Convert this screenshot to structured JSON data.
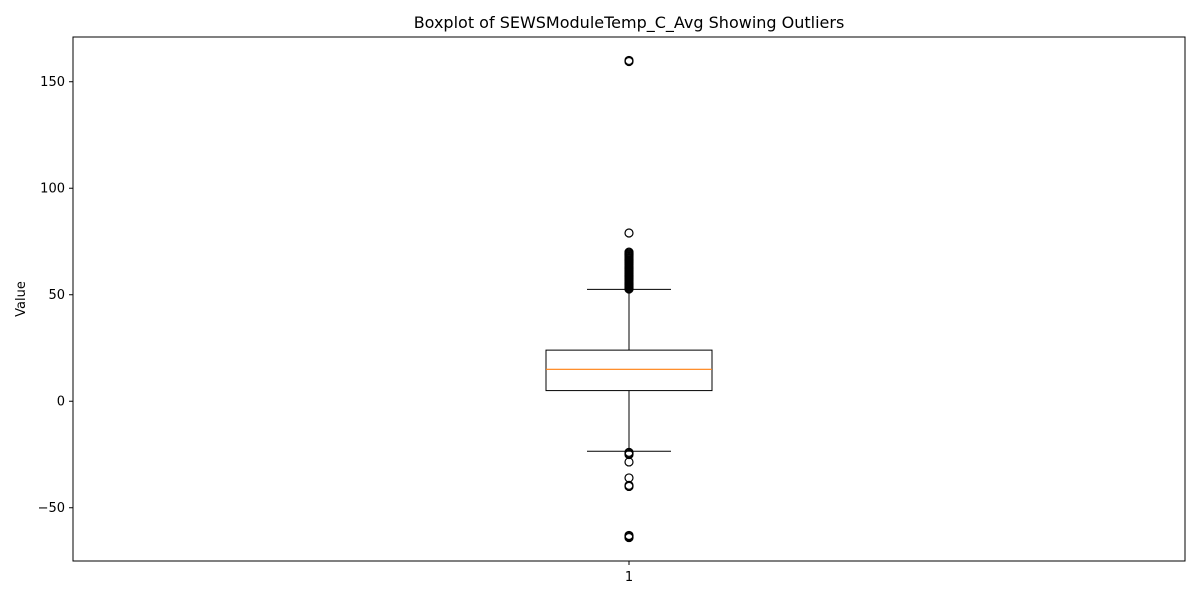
{
  "chart_data": {
    "type": "boxplot",
    "title": "Boxplot of SEWSModuleTemp_C_Avg Showing Outliers",
    "xlabel": "",
    "ylabel": "Value",
    "x_ticks": [
      "1"
    ],
    "y_ticks": [
      -50,
      0,
      50,
      100,
      150
    ],
    "y_tick_labels": [
      "−50",
      "0",
      "50",
      "100",
      "150"
    ],
    "ylim": [
      -75,
      171
    ],
    "grid": false,
    "colors": {
      "box": "#000000",
      "median": "#ff7f0e",
      "outlier_edge": "#000000"
    },
    "boxes": [
      {
        "category": "1",
        "whisker_low": -23.5,
        "q1": 5,
        "median": 15,
        "q3": 24,
        "whisker_high": 52.5,
        "outliers": [
          160,
          159.5,
          79,
          70,
          69.5,
          69,
          68.5,
          68,
          67.5,
          67,
          66.5,
          66,
          65.5,
          65,
          64.5,
          64,
          63.5,
          63,
          62.5,
          62,
          61.5,
          61,
          60.5,
          60,
          59.5,
          59,
          58.5,
          58,
          57.5,
          57,
          56.5,
          56,
          55.5,
          55,
          54.5,
          54,
          53.5,
          53,
          52.7,
          -24,
          -24.5,
          -25,
          -28.5,
          -36,
          -39.5,
          -40,
          -63,
          -63.5,
          -64
        ]
      }
    ]
  }
}
